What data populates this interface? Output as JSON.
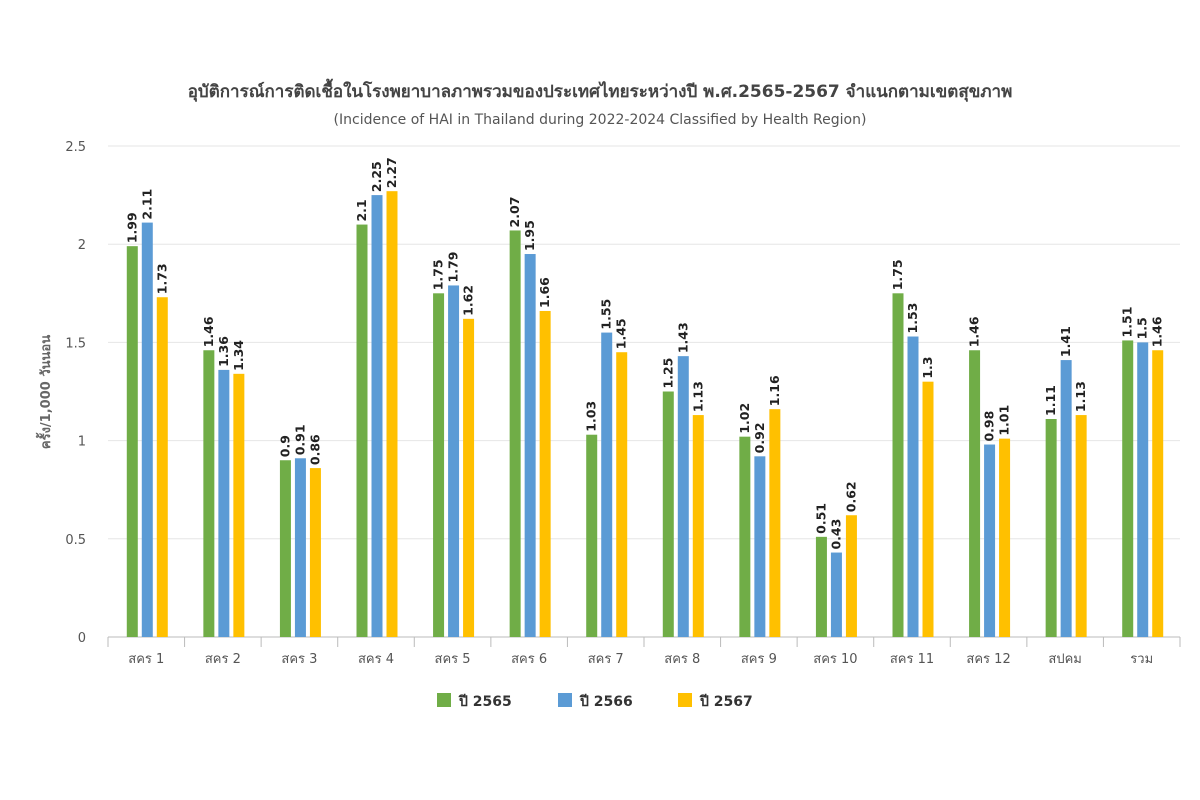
{
  "chart_data": {
    "type": "bar",
    "title": "อุบัติการณ์การติดเชื้อในโรงพยาบาลภาพรวมของประเทศไทยระหว่างปี พ.ศ.2565-2567 จำแนกตามเขตสุขภาพ",
    "subtitle": "(Incidence of HAI in Thailand during 2022-2024 Classified by Health Region)",
    "xlabel": "",
    "ylabel": "ครั้ง/1,000 วันนอน",
    "ylim": [
      0,
      2.5
    ],
    "yticks": [
      "0",
      "0.5",
      "1",
      "1.5",
      "2",
      "2.5"
    ],
    "grid": true,
    "legend_position": "bottom",
    "categories": [
      "สคร 1",
      "สคร 2",
      "สคร 3",
      "สคร 4",
      "สคร 5",
      "สคร 6",
      "สคร 7",
      "สคร 8",
      "สคร 9",
      "สคร 10",
      "สคร 11",
      "สคร 12",
      "สปคม",
      "รวม"
    ],
    "series": [
      {
        "name": "ปี 2565",
        "color": "#70ad47",
        "values": [
          1.99,
          1.46,
          0.9,
          2.1,
          1.75,
          2.07,
          1.03,
          1.25,
          1.02,
          0.51,
          1.75,
          1.46,
          1.11,
          1.51
        ]
      },
      {
        "name": "ปี 2566",
        "color": "#5b9bd5",
        "values": [
          2.11,
          1.36,
          0.91,
          2.25,
          1.79,
          1.95,
          1.55,
          1.43,
          0.92,
          0.43,
          1.53,
          0.98,
          1.41,
          1.5
        ]
      },
      {
        "name": "ปี 2567",
        "color": "#ffc000",
        "values": [
          1.73,
          1.34,
          0.86,
          2.27,
          1.62,
          1.66,
          1.45,
          1.13,
          1.16,
          0.62,
          1.3,
          1.01,
          1.13,
          1.46
        ]
      }
    ]
  }
}
